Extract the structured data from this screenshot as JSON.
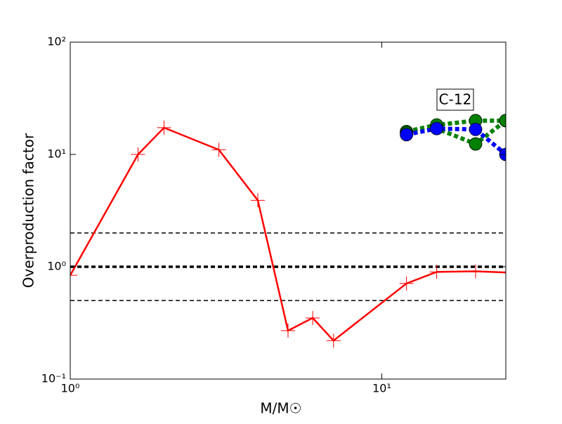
{
  "chart_data": {
    "type": "line",
    "xlabel": "M/M☉",
    "ylabel": "Overproduction factor",
    "annotation": "C-12",
    "xscale": "log",
    "yscale": "log",
    "xlim": [
      1,
      25
    ],
    "ylim": [
      0.1,
      100
    ],
    "xticks": [
      {
        "value": 1,
        "label": "10⁰"
      },
      {
        "value": 10,
        "label": "10¹"
      }
    ],
    "yticks": [
      {
        "value": 0.1,
        "label": "10⁻¹"
      },
      {
        "value": 1,
        "label": "10⁰"
      },
      {
        "value": 10,
        "label": "10¹"
      },
      {
        "value": 100,
        "label": "10²"
      }
    ],
    "hlines": [
      {
        "value": 2,
        "width": 1.5
      },
      {
        "value": 1,
        "width": 3.5
      },
      {
        "value": 0.5,
        "width": 1.5
      }
    ],
    "series": [
      {
        "color": "#ff0000",
        "linestyle": "solid",
        "marker": "+",
        "x": [
          1,
          1.65,
          2,
          3,
          4,
          5,
          6,
          7,
          12,
          15,
          20,
          25
        ],
        "values": [
          0.84,
          10,
          17.3,
          11,
          3.9,
          0.27,
          0.35,
          0.22,
          0.71,
          0.9,
          0.91,
          0.89
        ]
      },
      {
        "color": "#008000",
        "linestyle": "dotted",
        "marker": "o",
        "x": [
          12,
          15,
          20,
          25
        ],
        "values": [
          16,
          18.3,
          20,
          20
        ]
      },
      {
        "color": "#008000",
        "linestyle": "dotted",
        "marker": "o",
        "x": [
          12,
          15,
          20,
          25
        ],
        "values": [
          15.5,
          17,
          12.4,
          20
        ]
      },
      {
        "color": "#0000ff",
        "linestyle": "dotted",
        "marker": "o",
        "x": [
          12,
          15,
          20,
          25
        ],
        "values": [
          15,
          17,
          16.7,
          10
        ]
      }
    ]
  }
}
